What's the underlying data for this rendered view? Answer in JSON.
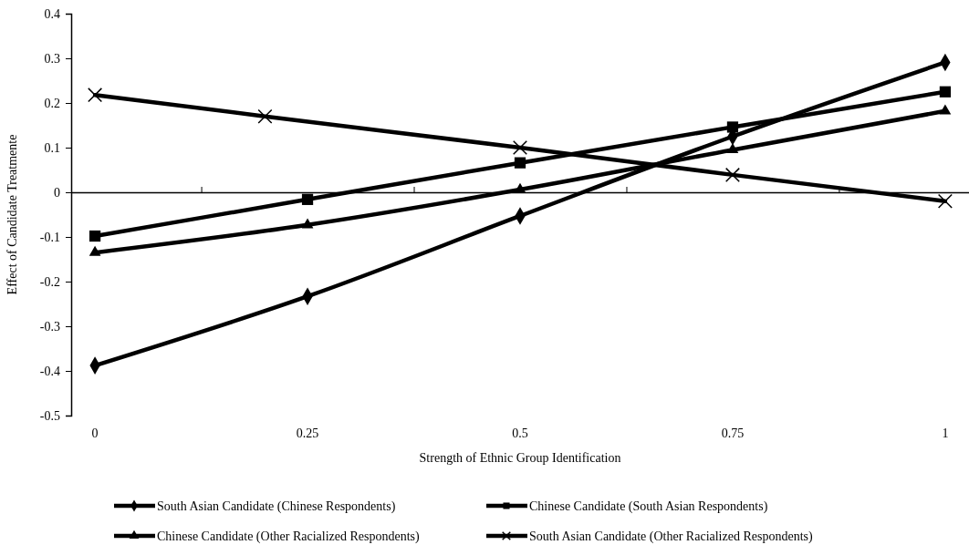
{
  "chart_data": {
    "type": "line",
    "xlabel": "Strength of Ethnic Group Identification",
    "ylabel": "Effect of Candidate Treatmente",
    "xlim": [
      -0.028,
      1.028
    ],
    "ylim": [
      -0.5,
      0.4
    ],
    "xticks": [
      0,
      {
        "value": 0.125,
        "label": null
      },
      0.25,
      {
        "value": 0.375,
        "label": null
      },
      0.5,
      {
        "value": 0.625,
        "label": null
      },
      0.75,
      {
        "value": 0.875,
        "label": null
      },
      1
    ],
    "yticks": [
      {
        "value": -0.5,
        "label": "-0.5"
      },
      {
        "value": -0.4,
        "label": "-0.4"
      },
      {
        "value": -0.3,
        "label": "-0.3"
      },
      {
        "value": -0.2,
        "label": "-0.2"
      },
      {
        "value": -0.1,
        "label": "-0.1"
      },
      0,
      0.1,
      0.2,
      0.3,
      0.4
    ],
    "legend": "bottom",
    "line_style": "solid",
    "series": [
      {
        "name": "South Asian Candidate (Chinese Respondents)",
        "color": "#000000",
        "marker": "diamond",
        "x": [
          0,
          0.25,
          0.5,
          0.75,
          1
        ],
        "values": [
          -0.388,
          -0.233,
          -0.053,
          0.125,
          0.291
        ]
      },
      {
        "name": "Chinese Candidate (South Asian Respondents)",
        "color": "#000000",
        "marker": "square",
        "x": [
          0,
          0.25,
          0.5,
          0.75,
          1
        ],
        "values": [
          -0.098,
          -0.016,
          0.066,
          0.146,
          0.225
        ]
      },
      {
        "name": "Chinese Candidate (Other Racialized Respondents)",
        "color": "#000000",
        "marker": "triangle",
        "x": [
          0,
          0.25,
          0.5,
          0.75,
          1
        ],
        "values": [
          -0.135,
          -0.073,
          0.006,
          0.095,
          0.182
        ]
      },
      {
        "name": "South Asian Candidate (Other Racialized Respondents)",
        "color": "#000000",
        "marker": "cross",
        "x": [
          0,
          0.2,
          0.5,
          0.75,
          1
        ],
        "values": [
          0.218,
          0.17,
          0.1,
          0.039,
          -0.02
        ]
      }
    ]
  }
}
